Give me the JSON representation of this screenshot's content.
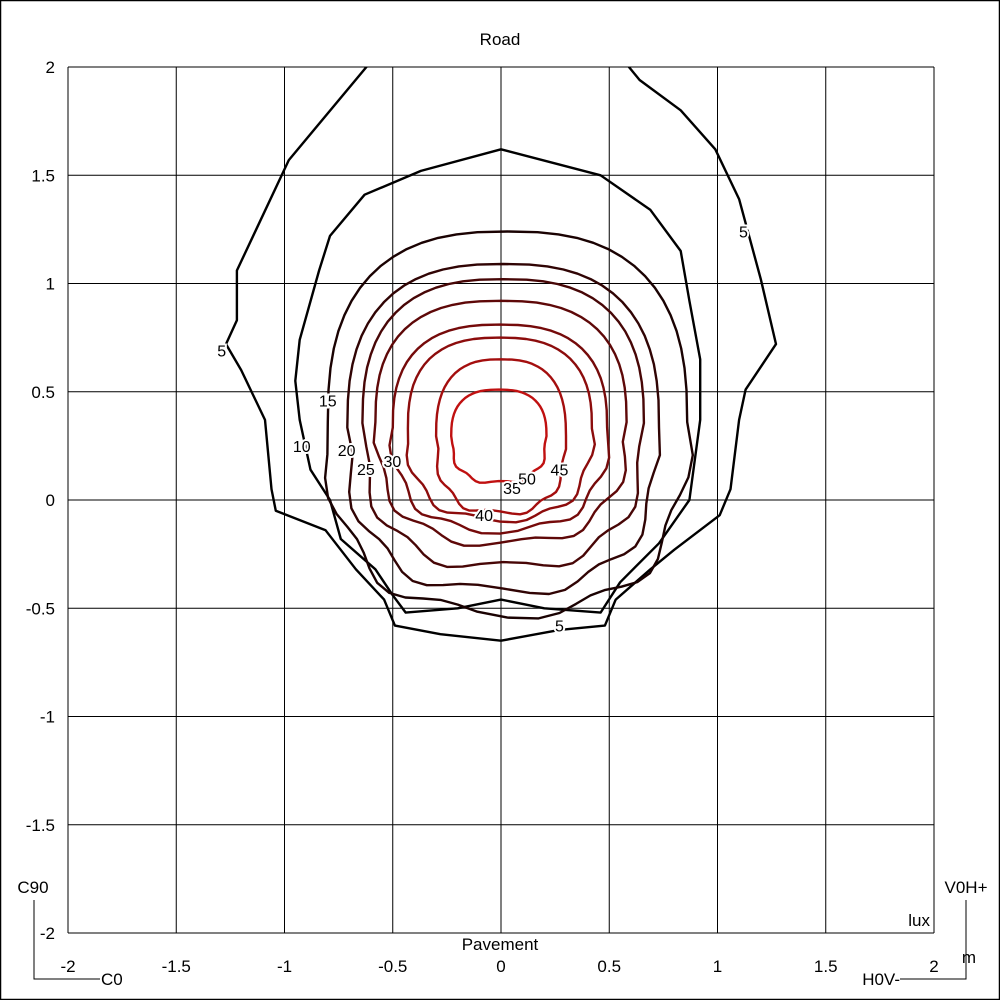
{
  "chart_data": {
    "type": "contour",
    "title": "Road",
    "xlabel": "Pavement",
    "unit_label": "lux",
    "distance_unit": "m",
    "corner_labels": {
      "top_left": "C90",
      "bottom_left": "C0",
      "top_right": "V0H+",
      "bottom_right": "H0V-"
    },
    "xlim": [
      -2,
      2
    ],
    "ylim": [
      -2,
      2
    ],
    "grid": true,
    "x_ticks": [
      "-2",
      "-1.5",
      "-1",
      "-0.5",
      "0",
      "0.5",
      "1",
      "1.5",
      "2"
    ],
    "y_ticks": [
      "2",
      "1.5",
      "1",
      "0.5",
      "0",
      "-0.5",
      "-1",
      "-1.5",
      "-2"
    ],
    "contours": [
      {
        "level": 5,
        "color": "#000000",
        "points": [
          [
            -0.58,
            2.05
          ],
          [
            -0.98,
            1.57
          ],
          [
            -1.22,
            1.06
          ],
          [
            -1.22,
            0.83
          ],
          [
            -1.27,
            0.72
          ],
          [
            -1.2,
            0.6
          ],
          [
            -1.09,
            0.37
          ],
          [
            -1.06,
            0.05
          ],
          [
            -1.04,
            -0.05
          ],
          [
            -0.81,
            -0.14
          ],
          [
            -0.67,
            -0.32
          ],
          [
            -0.54,
            -0.46
          ],
          [
            -0.49,
            -0.58
          ],
          [
            -0.28,
            -0.62
          ],
          [
            0,
            -0.65
          ],
          [
            0.27,
            -0.6
          ],
          [
            0.48,
            -0.58
          ],
          [
            0.53,
            -0.46
          ],
          [
            0.69,
            -0.32
          ],
          [
            0.8,
            -0.23
          ],
          [
            1.01,
            -0.07
          ],
          [
            1.06,
            0.05
          ],
          [
            1.1,
            0.37
          ],
          [
            1.13,
            0.51
          ],
          [
            1.27,
            0.72
          ],
          [
            1.2,
            1.02
          ],
          [
            1.1,
            1.39
          ],
          [
            0.99,
            1.62
          ],
          [
            0.83,
            1.8
          ],
          [
            0.64,
            1.94
          ],
          [
            0.55,
            2.05
          ]
        ],
        "closed": false
      },
      {
        "level": 10,
        "color": "#000000",
        "points": [
          [
            0,
            1.62
          ],
          [
            -0.37,
            1.52
          ],
          [
            -0.63,
            1.41
          ],
          [
            -0.79,
            1.22
          ],
          [
            -0.84,
            1.06
          ],
          [
            -0.93,
            0.74
          ],
          [
            -0.95,
            0.55
          ],
          [
            -0.93,
            0.37
          ],
          [
            -0.88,
            0.14
          ],
          [
            -0.79,
            0
          ],
          [
            -0.74,
            -0.18
          ],
          [
            -0.58,
            -0.32
          ],
          [
            -0.5,
            -0.44
          ],
          [
            -0.44,
            -0.52
          ],
          [
            -0.2,
            -0.5
          ],
          [
            0,
            -0.46
          ],
          [
            0.2,
            -0.5
          ],
          [
            0.46,
            -0.52
          ],
          [
            0.55,
            -0.38
          ],
          [
            0.73,
            -0.2
          ],
          [
            0.87,
            0
          ],
          [
            0.92,
            0.37
          ],
          [
            0.92,
            0.65
          ],
          [
            0.87,
            0.92
          ],
          [
            0.83,
            1.15
          ],
          [
            0.69,
            1.34
          ],
          [
            0.46,
            1.5
          ]
        ],
        "closed": true
      },
      {
        "level": 15,
        "color": "#1a0202",
        "x_range": [
          -0.8,
          0.86
        ],
        "y_range": [
          -0.52,
          1.24
        ]
      },
      {
        "level": 20,
        "color": "#300404",
        "x_range": [
          -0.71,
          0.73
        ],
        "y_range": [
          -0.42,
          1.09
        ]
      },
      {
        "level": 25,
        "color": "#470606",
        "x_range": [
          -0.64,
          0.66
        ],
        "y_range": [
          -0.31,
          1.02
        ]
      },
      {
        "level": 30,
        "color": "#5e0808",
        "x_range": [
          -0.58,
          0.58
        ],
        "y_range": [
          -0.2,
          0.92
        ]
      },
      {
        "level": 35,
        "color": "#750a0a",
        "x_range": [
          -0.5,
          0.49
        ],
        "y_range": [
          -0.14,
          0.81
        ]
      },
      {
        "level": 40,
        "color": "#8c0c0c",
        "x_range": [
          -0.43,
          0.42
        ],
        "y_range": [
          -0.09,
          0.75
        ]
      },
      {
        "level": 45,
        "color": "#a40e0e",
        "x_range": [
          -0.3,
          0.3
        ],
        "y_range": [
          -0.06,
          0.65
        ]
      },
      {
        "level": 50,
        "color": "#c01010",
        "x_range": [
          -0.23,
          0.21
        ],
        "y_range": [
          0.08,
          0.51
        ]
      }
    ],
    "contour_labels": [
      {
        "text": "5",
        "x": 1.12,
        "y": 1.24
      },
      {
        "text": "5",
        "x": -1.29,
        "y": 0.69
      },
      {
        "text": "5",
        "x": 0.27,
        "y": -0.58
      },
      {
        "text": "10",
        "x": -0.92,
        "y": 0.25
      },
      {
        "text": "15",
        "x": -0.8,
        "y": 0.46
      },
      {
        "text": "20",
        "x": -0.69,
        "y": 0.23
      },
      {
        "text": "25",
        "x": -0.61,
        "y": 0.17
      },
      {
        "text": "30",
        "x": -0.52,
        "y": 0.18
      },
      {
        "text": "35",
        "x": 0.0,
        "y": -0.01
      },
      {
        "text": "40",
        "x": -0.05,
        "y": -0.05
      },
      {
        "text": "45",
        "x": 0.27,
        "y": 0.14
      },
      {
        "text": "50",
        "x": 0.12,
        "y": 0.1
      }
    ]
  }
}
